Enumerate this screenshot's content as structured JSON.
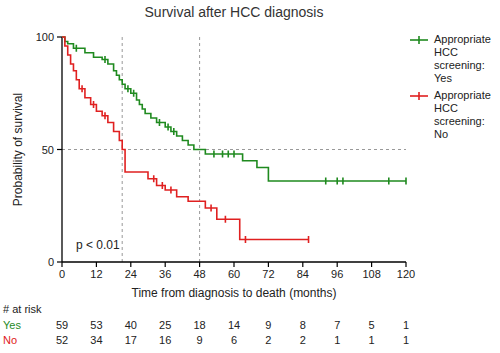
{
  "chart_data": {
    "type": "step",
    "title": "Survival after HCC diagnosis",
    "x_label": "Time from diagnosis to death (months)",
    "y_label": "Probability of survival",
    "xlim": [
      0,
      120
    ],
    "ylim": [
      0,
      100
    ],
    "xticks": [
      0,
      12,
      24,
      36,
      48,
      60,
      72,
      84,
      96,
      108,
      120
    ],
    "yticks": [
      0,
      50,
      100
    ],
    "grid": false,
    "legend": "right",
    "marker": "tick",
    "series": [
      {
        "name": "Appropriate HCC screening: Yes",
        "color": "#1f8a1f",
        "x": [
          0,
          1,
          2,
          4,
          8,
          11,
          14,
          16,
          18,
          19,
          20,
          21,
          22,
          24,
          26,
          27,
          28,
          29,
          31,
          33,
          36,
          38,
          40,
          42,
          44,
          46,
          50,
          63,
          68,
          72
        ],
        "values": [
          100,
          98,
          97,
          95,
          93,
          91,
          90,
          88,
          85,
          83,
          81,
          79,
          77,
          75,
          72,
          70,
          68,
          66,
          64,
          62,
          60,
          58,
          56,
          54,
          52,
          50,
          48,
          45,
          42,
          36
        ],
        "censored_x": [
          5,
          15,
          23,
          25,
          34,
          37,
          39,
          53,
          56,
          58,
          60,
          92,
          96,
          98,
          114,
          120
        ]
      },
      {
        "name": "Appropriate HCC screening: No",
        "color": "#e02020",
        "x": [
          0,
          1,
          2,
          3,
          4,
          5,
          6,
          8,
          10,
          12,
          14,
          16,
          18,
          20,
          21,
          22,
          30,
          33,
          36,
          40,
          44,
          50,
          54,
          62
        ],
        "values": [
          100,
          96,
          92,
          88,
          85,
          81,
          77,
          73,
          70,
          67,
          65,
          62,
          58,
          54,
          50,
          40,
          37,
          34,
          32,
          29,
          27,
          24,
          19,
          10
        ],
        "censored_x": [
          7,
          11,
          15,
          32,
          35,
          38,
          52,
          57,
          64,
          86
        ]
      }
    ],
    "reference_lines": {
      "x": [
        21,
        48
      ],
      "y": [
        50
      ]
    },
    "annotations": [
      "p < 0.01"
    ],
    "risk_table": {
      "title": "# at risk",
      "x": [
        0,
        12,
        24,
        36,
        48,
        60,
        72,
        84,
        96,
        108,
        120
      ],
      "rows": [
        {
          "name": "Yes",
          "color": "#1f8a1f",
          "values": [
            59,
            53,
            40,
            25,
            18,
            14,
            9,
            8,
            7,
            5,
            1
          ]
        },
        {
          "name": "No",
          "color": "#e02020",
          "values": [
            52,
            34,
            17,
            16,
            9,
            6,
            2,
            2,
            1,
            1,
            1
          ]
        }
      ]
    }
  }
}
